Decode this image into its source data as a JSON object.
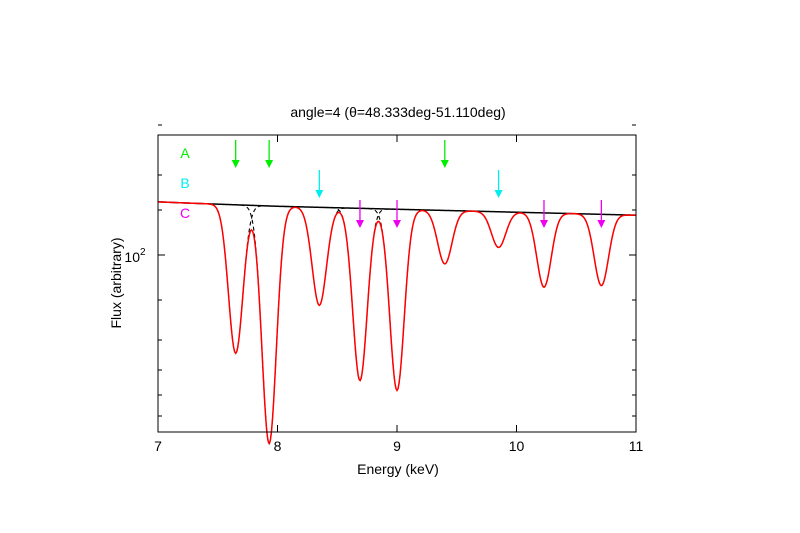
{
  "chart_data": {
    "type": "line",
    "title": "angle=4 (θ=48.333deg-51.110deg)",
    "xlabel": "Energy (keV)",
    "ylabel": "Flux (arbitrary)",
    "xlim": [
      7,
      11
    ],
    "x_ticks": [
      "7",
      "8",
      "9",
      "10",
      "11"
    ],
    "y_scale": "log",
    "ylim": [
      0,
      1
    ],
    "y_tick_label": "10",
    "y_tick_exponent": "2",
    "grid": false,
    "legend": "none",
    "continuum": {
      "x": [
        7.0,
        7.3,
        8.0,
        9.0,
        10.0,
        11.0
      ],
      "y": [
        0.775,
        0.77,
        0.76,
        0.75,
        0.74,
        0.73
      ]
    },
    "lines": [
      {
        "center": 7.65,
        "depth": 0.5,
        "sigma": 0.06,
        "group": "A"
      },
      {
        "center": 7.93,
        "depth": 0.8,
        "sigma": 0.06,
        "group": "A"
      },
      {
        "center": 8.35,
        "depth": 0.33,
        "sigma": 0.06,
        "group": "B"
      },
      {
        "center": 8.69,
        "depth": 0.58,
        "sigma": 0.06,
        "group": "C"
      },
      {
        "center": 9.0,
        "depth": 0.61,
        "sigma": 0.06,
        "group": "C"
      },
      {
        "center": 9.4,
        "depth": 0.18,
        "sigma": 0.06,
        "group": "A"
      },
      {
        "center": 9.85,
        "depth": 0.12,
        "sigma": 0.06,
        "group": "B"
      },
      {
        "center": 10.23,
        "depth": 0.25,
        "sigma": 0.06,
        "group": "C"
      },
      {
        "center": 10.71,
        "depth": 0.24,
        "sigma": 0.06,
        "group": "C"
      }
    ],
    "series": [
      {
        "style": "solid",
        "color": "#000000",
        "of": "continuum"
      },
      {
        "style": "dashed",
        "color": "#000000",
        "of": "single-line profiles"
      },
      {
        "style": "solid",
        "color": "#ff0000",
        "of": "total model"
      }
    ],
    "markers": [
      {
        "label": "A",
        "color": "#00ee00",
        "energies": [
          7.65,
          7.93,
          9.4
        ]
      },
      {
        "label": "B",
        "color": "#00eeee",
        "energies": [
          8.35,
          9.85
        ]
      },
      {
        "label": "C",
        "color": "#ee00ee",
        "energies": [
          8.69,
          9.0,
          10.23,
          10.71
        ]
      }
    ]
  }
}
